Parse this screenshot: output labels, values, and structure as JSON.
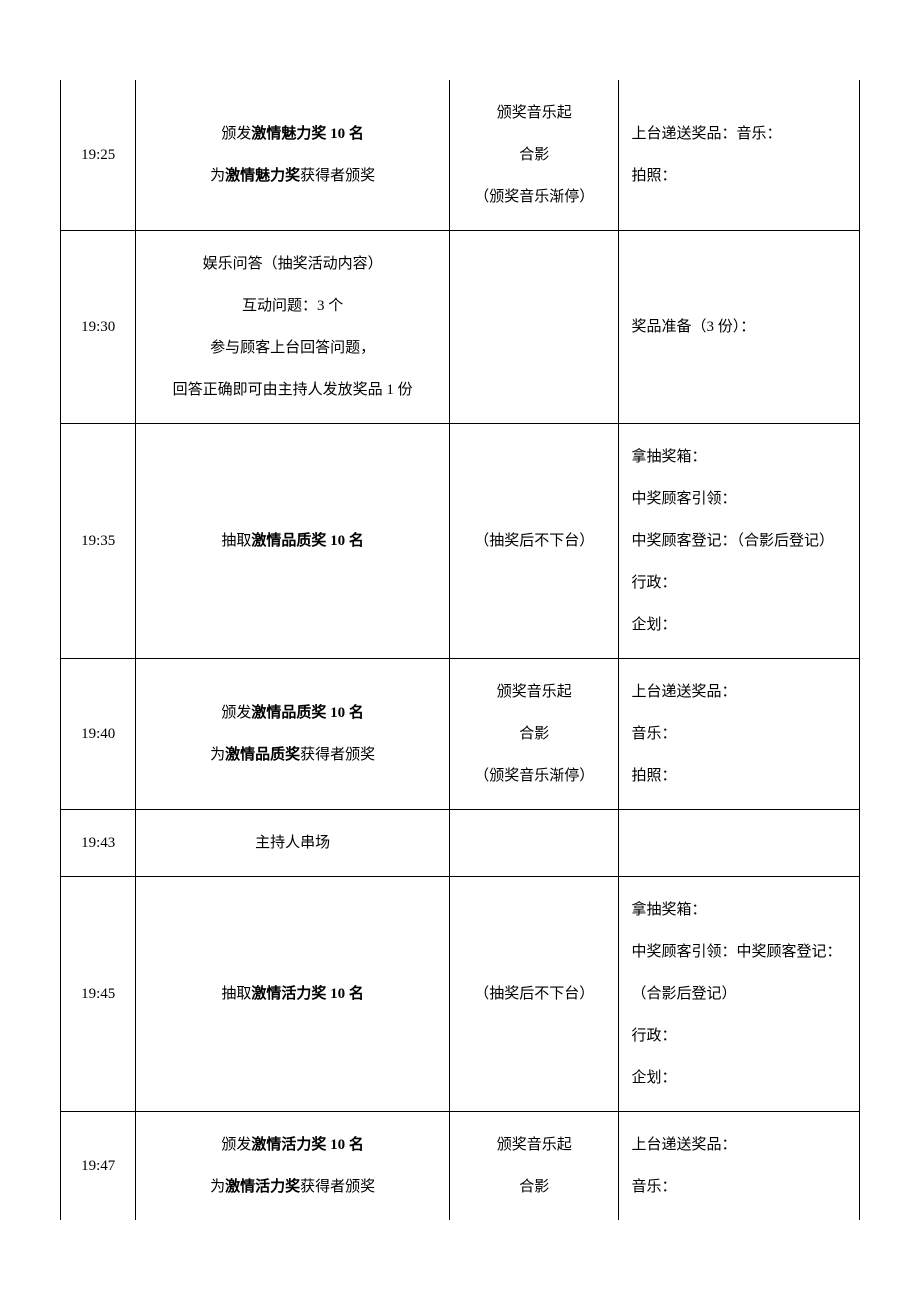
{
  "table": {
    "columns": {
      "time_width": 72,
      "main_width": 300,
      "stage_width": 162,
      "notes_width": 230
    },
    "border_color": "#000000",
    "background_color": "#ffffff",
    "text_color": "#000000",
    "font_family": "SimSun",
    "base_fontsize": 15,
    "line_height": 2.8,
    "rows": [
      {
        "time": "19:25",
        "main_prefix_1": "颁发",
        "main_bold_1": "激情魅力奖 10 名",
        "main_prefix_2": "为",
        "main_bold_2": "激情魅力奖",
        "main_suffix_2": "获得者颁奖",
        "stage_line_1": "颁奖音乐起",
        "stage_line_2": "合影",
        "stage_line_3": "（颁奖音乐渐停）",
        "notes_line_1": "上台递送奖品：音乐：",
        "notes_line_2": "拍照："
      },
      {
        "time": "19:30",
        "main_line_1": "娱乐问答（抽奖活动内容）",
        "main_line_2": "互动问题：3 个",
        "main_line_3": "参与顾客上台回答问题，",
        "main_line_4": "回答正确即可由主持人发放奖品 1 份",
        "stage": "",
        "notes_line_1": "奖品准备（3 份）："
      },
      {
        "time": "19:35",
        "main_prefix_1": "抽取",
        "main_bold_1": "激情品质奖 10 名",
        "stage_line_1": "（抽奖后不下台）",
        "notes_line_1": "拿抽奖箱：",
        "notes_line_2": "中奖顾客引领：",
        "notes_line_3": "中奖顾客登记：（合影后登记）",
        "notes_line_4": "行政：",
        "notes_line_5": "企划："
      },
      {
        "time": "19:40",
        "main_prefix_1": "颁发",
        "main_bold_1": "激情品质奖 10 名",
        "main_prefix_2": "为",
        "main_bold_2": "激情品质奖",
        "main_suffix_2": "获得者颁奖",
        "stage_line_1": "颁奖音乐起",
        "stage_line_2": "合影",
        "stage_line_3": "（颁奖音乐渐停）",
        "notes_line_1": "上台递送奖品：",
        "notes_line_2": "音乐：",
        "notes_line_3": "拍照："
      },
      {
        "time": "19:43",
        "main_line_1": "主持人串场",
        "stage": "",
        "notes": ""
      },
      {
        "time": "19:45",
        "main_prefix_1": "抽取",
        "main_bold_1": "激情活力奖 10 名",
        "stage_line_1": "（抽奖后不下台）",
        "notes_line_1": "拿抽奖箱：",
        "notes_line_2": "中奖顾客引领：中奖顾客登记：",
        "notes_line_3": "（合影后登记）",
        "notes_line_4": "行政：",
        "notes_line_5": "企划："
      },
      {
        "time": "19:47",
        "main_prefix_1": "颁发",
        "main_bold_1": "激情活力奖 10 名",
        "main_prefix_2": "为",
        "main_bold_2": "激情活力奖",
        "main_suffix_2": "获得者颁奖",
        "stage_line_1": "颁奖音乐起",
        "stage_line_2": "合影",
        "notes_line_1": "上台递送奖品：",
        "notes_line_2": "音乐："
      }
    ]
  }
}
